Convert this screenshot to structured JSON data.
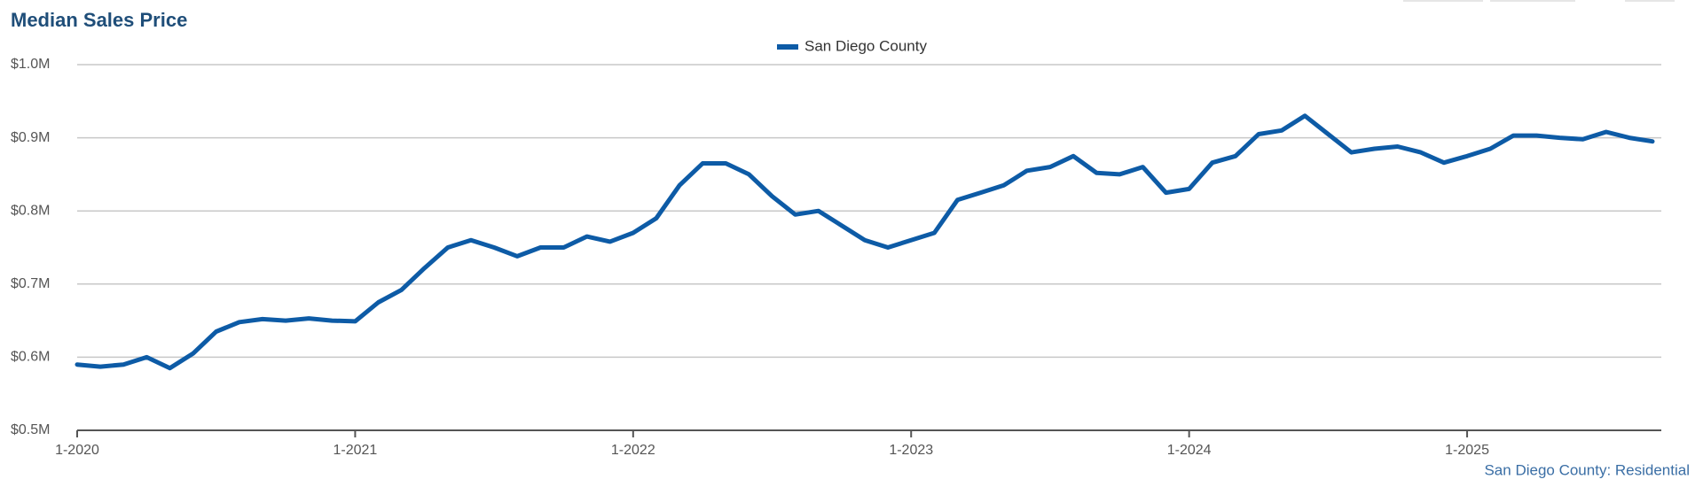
{
  "chart_data": {
    "type": "line",
    "title": "Median Sales Price",
    "note": "San Diego County: Residential",
    "categories": [
      "1-2020",
      null,
      null,
      null,
      null,
      null,
      null,
      null,
      null,
      null,
      null,
      null,
      "1-2021",
      null,
      null,
      null,
      null,
      null,
      null,
      null,
      null,
      null,
      null,
      null,
      "1-2022",
      null,
      null,
      null,
      null,
      null,
      null,
      null,
      null,
      null,
      null,
      null,
      "1-2023",
      null,
      null,
      null,
      null,
      null,
      null,
      null,
      null,
      null,
      null,
      null,
      "1-2024",
      null,
      null,
      null,
      null,
      null,
      null,
      null,
      null,
      null,
      null,
      null,
      "1-2025",
      null,
      null,
      null,
      null,
      null,
      null,
      null,
      null
    ],
    "series": [
      {
        "name": "San Diego County",
        "color": "#0d5ba6",
        "values": [
          590000,
          587000,
          590000,
          600000,
          585000,
          605000,
          635000,
          648000,
          652000,
          650000,
          653000,
          650000,
          649000,
          675000,
          692000,
          722000,
          750000,
          760000,
          750000,
          738000,
          750000,
          750000,
          765000,
          758000,
          770000,
          790000,
          835000,
          865000,
          865000,
          850000,
          820000,
          795000,
          800000,
          780000,
          760000,
          750000,
          760000,
          770000,
          815000,
          825000,
          835000,
          855000,
          860000,
          875000,
          852000,
          850000,
          860000,
          825000,
          830000,
          866000,
          875000,
          905000,
          910000,
          930000,
          905000,
          880000,
          885000,
          888000,
          880000,
          866000,
          875000,
          885000,
          903000,
          903000,
          900000,
          898000,
          908000,
          900000,
          895000
        ]
      }
    ],
    "ylim": [
      500000,
      1000000
    ],
    "yticks": [
      {
        "value": 500000,
        "label": "$0.5M"
      },
      {
        "value": 600000,
        "label": "$0.6M"
      },
      {
        "value": 700000,
        "label": "$0.7M"
      },
      {
        "value": 800000,
        "label": "$0.8M"
      },
      {
        "value": 900000,
        "label": "$0.9M"
      },
      {
        "value": 1000000,
        "label": "$1.0M"
      }
    ],
    "grid": true
  }
}
